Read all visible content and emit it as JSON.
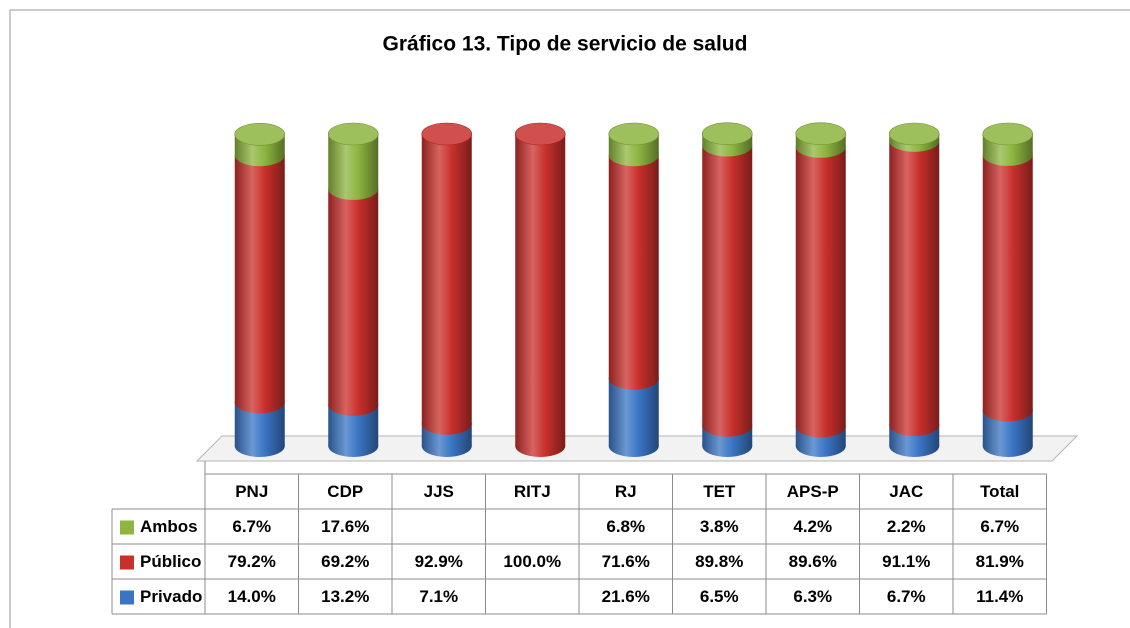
{
  "chart_data": {
    "type": "stacked-cylinder",
    "title": "Gráfico 13. Tipo de servicio de salud",
    "categories": [
      "PNJ",
      "CDP",
      "JJS",
      "RITJ",
      "RJ",
      "TET",
      "APS-P",
      "JAC",
      "Total"
    ],
    "series": [
      {
        "name": "Ambos",
        "color": "#8db53f",
        "values": [
          6.7,
          17.6,
          null,
          null,
          6.8,
          3.8,
          4.2,
          2.2,
          6.7
        ],
        "value_labels": [
          "6.7%",
          "17.6%",
          null,
          null,
          "6.8%",
          "3.8%",
          "4.2%",
          "2.2%",
          "6.7%"
        ]
      },
      {
        "name": "Público",
        "color": "#c9302c",
        "values": [
          79.2,
          69.2,
          92.9,
          100.0,
          71.6,
          89.8,
          89.6,
          91.1,
          81.9
        ],
        "value_labels": [
          "79.2%",
          "69.2%",
          "92.9%",
          "100.0%",
          "71.6%",
          "89.8%",
          "89.6%",
          "91.1%",
          "81.9%"
        ]
      },
      {
        "name": "Privado",
        "color": "#3a75c4",
        "values": [
          14.0,
          13.2,
          7.1,
          null,
          21.6,
          6.5,
          6.3,
          6.7,
          11.4
        ],
        "value_labels": [
          "14.0%",
          "13.2%",
          "7.1%",
          null,
          "21.6%",
          "6.5%",
          "6.3%",
          "6.7%",
          "11.4%"
        ]
      }
    ]
  }
}
